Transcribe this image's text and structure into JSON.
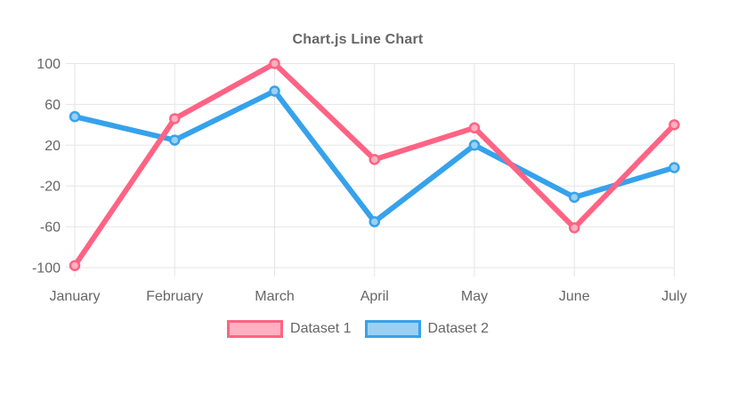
{
  "chart_data": {
    "type": "line",
    "title": "Chart.js Line Chart",
    "categories": [
      "January",
      "February",
      "March",
      "April",
      "May",
      "June",
      "July"
    ],
    "series": [
      {
        "name": "Dataset 1",
        "color": "#ff6384",
        "point_fill": "#ffb1c1",
        "values": [
          -98,
          46,
          100,
          6,
          37,
          -61,
          40
        ]
      },
      {
        "name": "Dataset 2",
        "color": "#36a2eb",
        "point_fill": "#9bd0f5",
        "values": [
          48,
          25,
          73,
          -55,
          20,
          -31,
          -2
        ]
      }
    ],
    "yticks": [
      100,
      60,
      20,
      -20,
      -60,
      -100
    ],
    "ylim": [
      -100,
      100
    ],
    "xlabel": "",
    "ylabel": "",
    "grid": true,
    "legend_position": "bottom",
    "text_color": "#666666",
    "grid_color": "#e5e5e5",
    "background": "#ffffff"
  }
}
